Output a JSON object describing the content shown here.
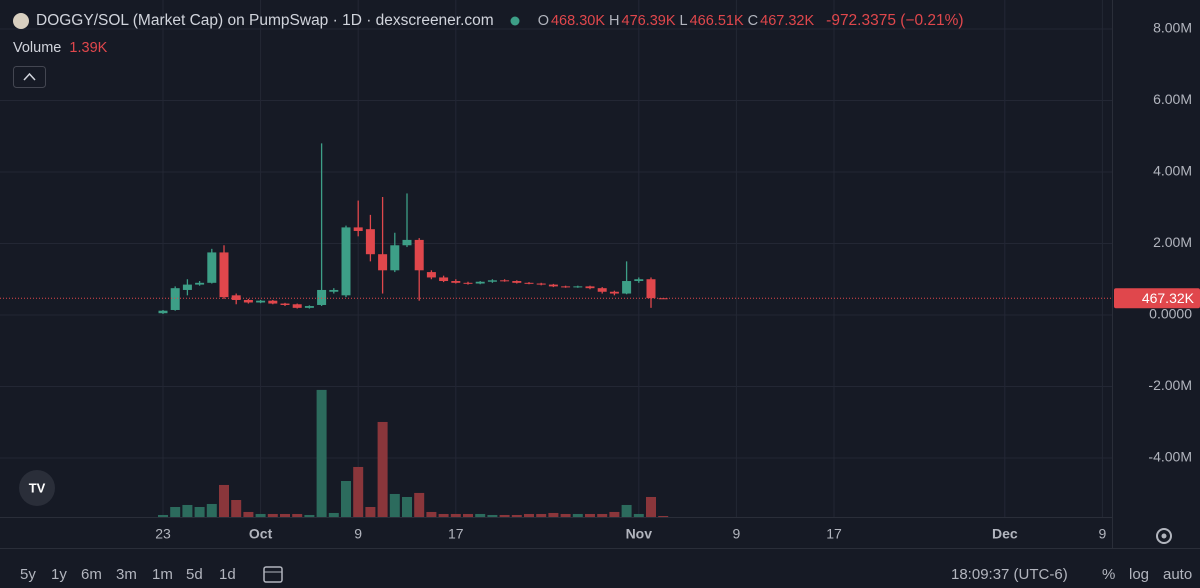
{
  "chart_data": {
    "type": "candlestick",
    "title": "DOGGY/SOL (Market Cap) on PumpSwap · 1D · dexscreener.com",
    "ohlc": [
      {
        "key": "O",
        "value": "468.30K"
      },
      {
        "key": "H",
        "value": "476.39K"
      },
      {
        "key": "L",
        "value": "466.51K"
      },
      {
        "key": "C",
        "value": "467.32K"
      }
    ],
    "change": "-972.3375 (−0.21%)",
    "volume_label": "Volume",
    "volume_value": "1.39K",
    "categories": [
      "23",
      null,
      null,
      null,
      null,
      null,
      null,
      null,
      "Oct",
      null,
      null,
      null,
      null,
      null,
      null,
      null,
      "9",
      null,
      null,
      null,
      null,
      null,
      null,
      null,
      "17",
      null,
      null,
      null,
      null,
      null,
      null,
      null,
      null,
      null,
      null,
      null,
      null,
      null,
      null,
      "Nov",
      null,
      null,
      null,
      null,
      null,
      null,
      null,
      "9",
      null,
      null,
      null,
      null,
      null,
      null,
      null,
      "17",
      null,
      null,
      null,
      null,
      null,
      null,
      null,
      null,
      null,
      null,
      null,
      null,
      null,
      "Dec",
      null,
      null,
      null,
      null,
      null,
      null,
      null,
      "9"
    ],
    "open": [
      0.05,
      0.14,
      0.7,
      0.85,
      0.9,
      1.75,
      0.55,
      0.42,
      0.35,
      0.4,
      0.32,
      0.3,
      0.2,
      0.28,
      0.65,
      0.55,
      2.45,
      2.4,
      1.7,
      1.25,
      1.95,
      2.1,
      1.2,
      1.05,
      0.95,
      0.9,
      0.88,
      0.93,
      0.97,
      0.95,
      0.9,
      0.88,
      0.85,
      0.8,
      0.78,
      0.8,
      0.75,
      0.65,
      0.6,
      0.95,
      1.0,
      0.4683,
      null,
      null,
      null,
      null,
      null,
      null,
      null,
      null,
      null,
      null,
      null,
      null,
      null,
      null,
      null,
      null,
      null,
      null,
      null,
      null,
      null,
      null,
      null,
      null,
      null,
      null,
      null,
      null,
      null,
      null,
      null,
      null,
      null,
      null,
      null,
      null
    ],
    "high": [
      0.14,
      0.8,
      1.0,
      0.95,
      1.85,
      1.95,
      0.6,
      0.45,
      0.42,
      0.42,
      0.34,
      0.32,
      0.27,
      4.8,
      0.75,
      2.5,
      3.2,
      2.8,
      3.3,
      2.3,
      3.4,
      2.15,
      1.25,
      1.1,
      1.0,
      0.93,
      0.95,
      1.0,
      1.0,
      0.97,
      0.92,
      0.9,
      0.87,
      0.82,
      0.82,
      0.82,
      0.78,
      0.68,
      1.5,
      1.05,
      1.05,
      0.47639,
      null,
      null,
      null,
      null,
      null,
      null,
      null,
      null,
      null,
      null,
      null,
      null,
      null,
      null,
      null,
      null,
      null,
      null,
      null,
      null,
      null,
      null,
      null,
      null,
      null,
      null,
      null,
      null,
      null,
      null,
      null,
      null,
      null,
      null,
      null,
      null
    ],
    "low": [
      0.03,
      0.12,
      0.55,
      0.82,
      0.88,
      0.45,
      0.3,
      0.32,
      0.33,
      0.3,
      0.25,
      0.18,
      0.18,
      0.25,
      0.6,
      0.5,
      2.2,
      1.5,
      0.6,
      1.2,
      1.9,
      0.4,
      1.0,
      0.92,
      0.88,
      0.85,
      0.86,
      0.9,
      0.93,
      0.88,
      0.86,
      0.83,
      0.78,
      0.76,
      0.76,
      0.72,
      0.6,
      0.55,
      0.58,
      0.9,
      0.2,
      0.46651,
      null,
      null,
      null,
      null,
      null,
      null,
      null,
      null,
      null,
      null,
      null,
      null,
      null,
      null,
      null,
      null,
      null,
      null,
      null,
      null,
      null,
      null,
      null,
      null,
      null,
      null,
      null,
      null,
      null,
      null,
      null,
      null,
      null,
      null,
      null,
      null
    ],
    "close": [
      0.12,
      0.75,
      0.85,
      0.9,
      1.75,
      0.5,
      0.42,
      0.35,
      0.4,
      0.32,
      0.28,
      0.2,
      0.25,
      0.7,
      0.7,
      2.45,
      2.35,
      1.7,
      1.25,
      1.95,
      2.1,
      1.25,
      1.05,
      0.95,
      0.9,
      0.88,
      0.93,
      0.97,
      0.95,
      0.9,
      0.88,
      0.85,
      0.8,
      0.78,
      0.8,
      0.75,
      0.65,
      0.6,
      0.95,
      1.0,
      0.47,
      0.46732,
      null,
      null,
      null,
      null,
      null,
      null,
      null,
      null,
      null,
      null,
      null,
      null,
      null,
      null,
      null,
      null,
      null,
      null,
      null,
      null,
      null,
      null,
      null,
      null,
      null,
      null,
      null,
      null,
      null,
      null,
      null,
      null,
      null,
      null,
      null,
      null
    ],
    "volume": [
      2.8,
      13.9,
      16.7,
      13.9,
      18.1,
      44.5,
      23.6,
      7,
      4.2,
      4.2,
      4.2,
      4.2,
      2.8,
      176.5,
      5.6,
      50,
      69.5,
      13.9,
      132,
      32,
      27.8,
      33.4,
      7,
      4.2,
      4.2,
      4.2,
      4.2,
      2.8,
      2.8,
      2.8,
      4.2,
      4.2,
      5.6,
      4.2,
      4.2,
      4.2,
      4.2,
      7,
      16.7,
      4.2,
      27.8,
      1.39,
      null,
      null,
      null,
      null,
      null,
      null,
      null,
      null,
      null,
      null,
      null,
      null,
      null,
      null,
      null,
      null,
      null,
      null,
      null,
      null,
      null,
      null,
      null,
      null,
      null,
      null,
      null,
      null,
      null,
      null,
      null,
      null,
      null,
      null,
      null,
      null
    ],
    "ylim": [
      -5.65,
      8.81
    ],
    "yticks": [
      {
        "value": 8,
        "label": "8.00M"
      },
      {
        "value": 6,
        "label": "6.00M"
      },
      {
        "value": 4,
        "label": "4.00M"
      },
      {
        "value": 2,
        "label": "2.00M"
      },
      {
        "value": 0,
        "label": "0.0000"
      },
      {
        "value": -2,
        "label": "-2.00M"
      },
      {
        "value": -4,
        "label": "-4.00M"
      }
    ],
    "volume_ylim": [
      0,
      200
    ],
    "last_price": {
      "value": 0.46732,
      "label": "467.32K"
    },
    "grid": true,
    "colors": {
      "up": "#3d9f87",
      "down": "#e0474c",
      "volume_up": "#2c6b5d",
      "volume_down": "#8a363b"
    }
  },
  "toolbar": {
    "ranges": [
      "5y",
      "1y",
      "6m",
      "3m",
      "1m",
      "5d",
      "1d"
    ],
    "time": "18:09:37 (UTC-6)",
    "options": [
      "%",
      "log",
      "auto"
    ]
  }
}
